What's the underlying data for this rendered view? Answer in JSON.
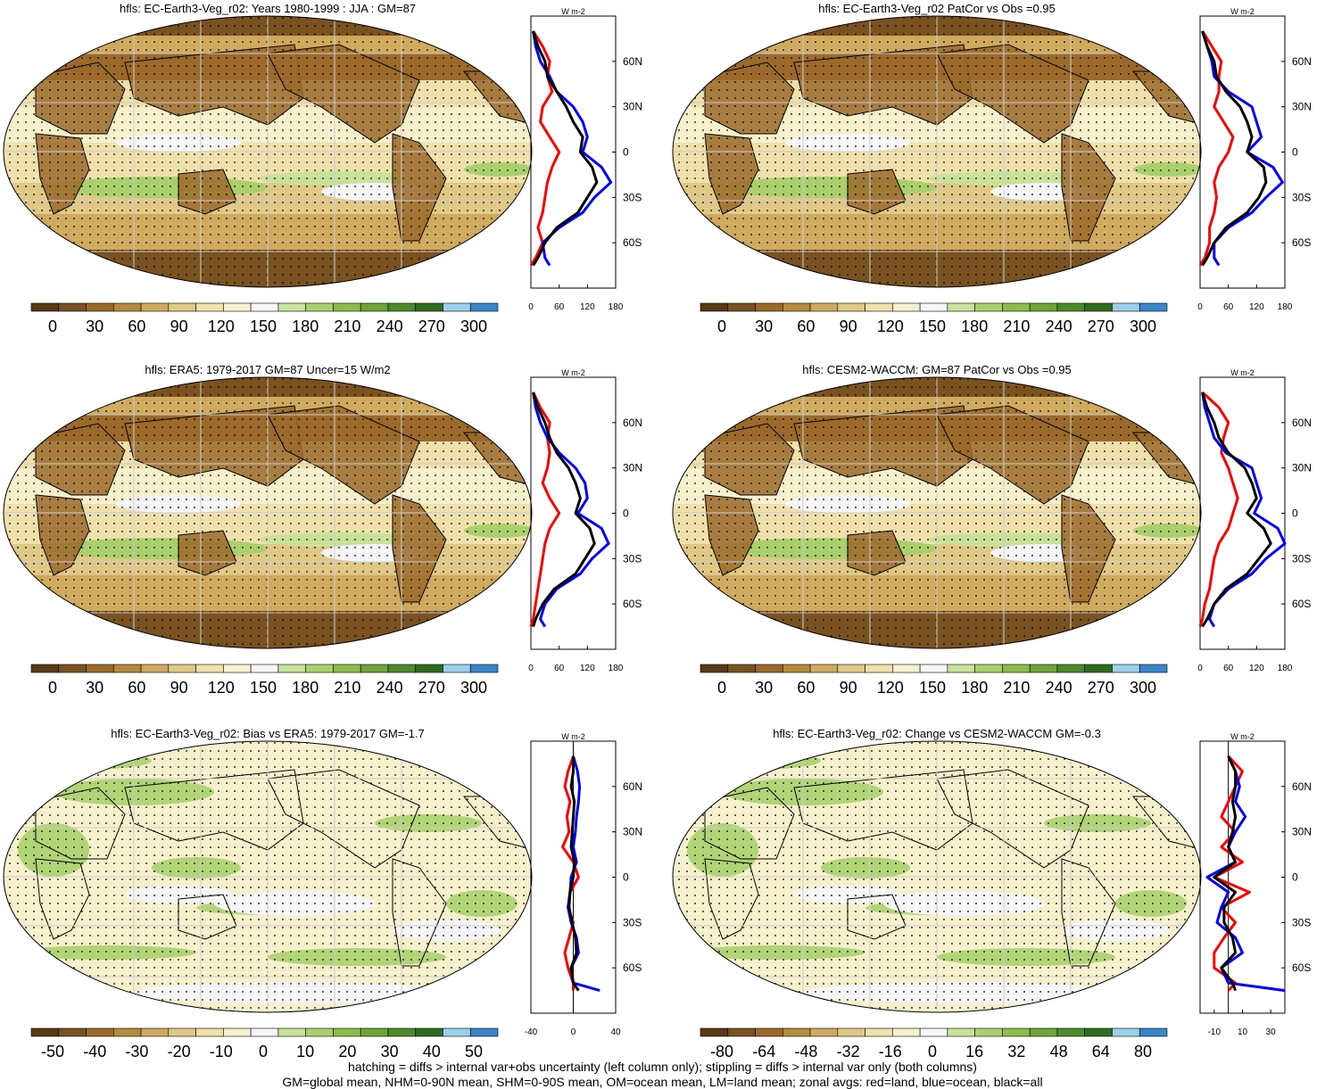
{
  "chart_data": [
    {
      "type": "map",
      "title": "hfls: EC-Earth3-Veg_r02: Years 1980-1999 : JJA : GM=87",
      "colorbar": {
        "labels": [
          "0",
          "30",
          "60",
          "90",
          "120",
          "150",
          "180",
          "210",
          "240",
          "270",
          "300"
        ],
        "kind": "abs"
      },
      "zonal": {
        "type": "line",
        "unit": "W m-2",
        "xticks": [
          "0",
          "60",
          "120",
          "180"
        ],
        "xlim": [
          0,
          180
        ],
        "yticks": [
          "60N",
          "30N",
          "0",
          "30S",
          "60S"
        ],
        "ylim": [
          -90,
          90
        ],
        "series": [
          {
            "color": "#ff0000",
            "lat": [
              80,
              70,
              60,
              50,
              40,
              30,
              20,
              10,
              0,
              -10,
              -20,
              -30,
              -40,
              -50,
              -60,
              -70,
              -75
            ],
            "values": [
              5,
              25,
              40,
              35,
              45,
              25,
              20,
              40,
              60,
              45,
              35,
              30,
              25,
              15,
              25,
              10,
              0
            ]
          },
          {
            "color": "#0000ff",
            "lat": [
              80,
              70,
              60,
              50,
              40,
              30,
              20,
              10,
              0,
              -10,
              -20,
              -30,
              -40,
              -50,
              -60,
              -70,
              -75
            ],
            "values": [
              5,
              10,
              20,
              40,
              55,
              90,
              110,
              120,
              110,
              150,
              170,
              135,
              110,
              60,
              25,
              30,
              40
            ]
          },
          {
            "color": "#000000",
            "lat": [
              80,
              70,
              60,
              50,
              40,
              30,
              20,
              10,
              0,
              -10,
              -20,
              -30,
              -40,
              -50,
              -60,
              -70,
              -75
            ],
            "values": [
              5,
              15,
              30,
              35,
              55,
              75,
              90,
              110,
              105,
              130,
              140,
              120,
              100,
              55,
              30,
              15,
              5
            ]
          }
        ]
      }
    },
    {
      "type": "map",
      "title": "hfls: EC-Earth3-Veg_r02 PatCor vs Obs =0.95",
      "colorbar": {
        "labels": [
          "0",
          "30",
          "60",
          "90",
          "120",
          "150",
          "180",
          "210",
          "240",
          "270",
          "300"
        ],
        "kind": "abs"
      },
      "zonal": {
        "type": "line",
        "unit": "W m-2",
        "xticks": [
          "0",
          "60",
          "120",
          "180"
        ],
        "xlim": [
          0,
          180
        ],
        "yticks": [
          "60N",
          "30N",
          "0",
          "30S",
          "60S"
        ],
        "ylim": [
          -90,
          90
        ],
        "series": [
          {
            "color": "#ff0000",
            "lat": [
              80,
              70,
              60,
              50,
              40,
              30,
              20,
              10,
              0,
              -10,
              -20,
              -30,
              -40,
              -50,
              -60,
              -70,
              -75
            ],
            "values": [
              5,
              25,
              45,
              40,
              40,
              30,
              50,
              70,
              60,
              40,
              30,
              35,
              30,
              20,
              20,
              10,
              0
            ]
          },
          {
            "color": "#0000ff",
            "lat": [
              80,
              70,
              60,
              50,
              40,
              30,
              20,
              10,
              0,
              -10,
              -20,
              -30,
              -40,
              -50,
              -60,
              -70,
              -75
            ],
            "values": [
              5,
              15,
              25,
              30,
              60,
              110,
              120,
              130,
              100,
              155,
              175,
              140,
              110,
              60,
              30,
              30,
              40
            ]
          },
          {
            "color": "#000000",
            "lat": [
              80,
              70,
              60,
              50,
              40,
              30,
              20,
              10,
              0,
              -10,
              -20,
              -30,
              -40,
              -50,
              -60,
              -70,
              -75
            ],
            "values": [
              5,
              15,
              30,
              35,
              55,
              85,
              100,
              110,
              100,
              135,
              140,
              125,
              100,
              55,
              30,
              15,
              5
            ]
          }
        ]
      }
    },
    {
      "type": "map",
      "title": "hfls: ERA5: 1979-2017 GM=87 Uncer=15 W/m2",
      "colorbar": {
        "labels": [
          "0",
          "30",
          "60",
          "90",
          "120",
          "150",
          "180",
          "210",
          "240",
          "270",
          "300"
        ],
        "kind": "abs"
      },
      "zonal": {
        "type": "line",
        "unit": "W m-2",
        "xticks": [
          "0",
          "60",
          "120",
          "180"
        ],
        "xlim": [
          0,
          180
        ],
        "yticks": [
          "60N",
          "30N",
          "0",
          "30S",
          "60S"
        ],
        "ylim": [
          -90,
          90
        ],
        "series": [
          {
            "color": "#ff0000",
            "lat": [
              80,
              70,
              60,
              50,
              40,
              30,
              20,
              10,
              0,
              -10,
              -20,
              -30,
              -40,
              -50,
              -60,
              -70,
              -75
            ],
            "values": [
              5,
              20,
              40,
              35,
              40,
              35,
              25,
              40,
              60,
              40,
              30,
              25,
              20,
              15,
              10,
              5,
              0
            ]
          },
          {
            "color": "#0000ff",
            "lat": [
              80,
              70,
              60,
              50,
              40,
              30,
              20,
              10,
              0,
              -10,
              -20,
              -30,
              -40,
              -50,
              -60,
              -70,
              -75
            ],
            "values": [
              5,
              10,
              20,
              35,
              60,
              95,
              115,
              120,
              100,
              150,
              165,
              130,
              105,
              55,
              30,
              20,
              30
            ]
          },
          {
            "color": "#000000",
            "lat": [
              80,
              70,
              60,
              50,
              40,
              30,
              20,
              10,
              0,
              -10,
              -20,
              -30,
              -40,
              -50,
              -60,
              -70,
              -75
            ],
            "values": [
              5,
              15,
              30,
              40,
              55,
              80,
              95,
              105,
              95,
              125,
              135,
              115,
              95,
              50,
              25,
              10,
              5
            ]
          }
        ]
      }
    },
    {
      "type": "map",
      "title": "hfls: CESM2-WACCM: GM=87 PatCor vs Obs =0.95",
      "colorbar": {
        "labels": [
          "0",
          "30",
          "60",
          "90",
          "120",
          "150",
          "180",
          "210",
          "240",
          "270",
          "300"
        ],
        "kind": "abs"
      },
      "zonal": {
        "type": "line",
        "unit": "W m-2",
        "xticks": [
          "0",
          "60",
          "120",
          "180"
        ],
        "xlim": [
          0,
          180
        ],
        "yticks": [
          "60N",
          "30N",
          "0",
          "30S",
          "60S"
        ],
        "ylim": [
          -90,
          90
        ],
        "series": [
          {
            "color": "#ff0000",
            "lat": [
              80,
              70,
              60,
              50,
              40,
              30,
              20,
              10,
              0,
              -10,
              -20,
              -30,
              -40,
              -50,
              -60,
              -70,
              -75
            ],
            "values": [
              5,
              40,
              60,
              50,
              45,
              60,
              70,
              80,
              70,
              60,
              40,
              30,
              25,
              20,
              10,
              5,
              0
            ]
          },
          {
            "color": "#0000ff",
            "lat": [
              80,
              70,
              60,
              50,
              40,
              30,
              20,
              10,
              0,
              -10,
              -20,
              -30,
              -40,
              -50,
              -60,
              -70,
              -75
            ],
            "values": [
              5,
              10,
              20,
              30,
              55,
              110,
              120,
              130,
              115,
              165,
              180,
              140,
              110,
              60,
              30,
              20,
              30
            ]
          },
          {
            "color": "#000000",
            "lat": [
              80,
              70,
              60,
              50,
              40,
              30,
              20,
              10,
              0,
              -10,
              -20,
              -30,
              -40,
              -50,
              -60,
              -70,
              -75
            ],
            "values": [
              5,
              15,
              30,
              40,
              60,
              95,
              110,
              120,
              100,
              135,
              150,
              125,
              100,
              55,
              30,
              15,
              5
            ]
          }
        ]
      }
    },
    {
      "type": "map",
      "title": "hfls: EC-Earth3-Veg_r02: Bias vs ERA5: 1979-2017 GM=-1.7",
      "colorbar": {
        "labels": [
          "-50",
          "-40",
          "-30",
          "-20",
          "-10",
          "0",
          "10",
          "20",
          "30",
          "40",
          "50"
        ],
        "kind": "diff"
      },
      "zonal": {
        "type": "line",
        "unit": "W m-2",
        "xticks": [
          "-40",
          "0",
          "40"
        ],
        "xlim": [
          -40,
          40
        ],
        "yticks": [
          "60N",
          "30N",
          "0",
          "30S",
          "60S"
        ],
        "ylim": [
          -90,
          90
        ],
        "series": [
          {
            "color": "#ff0000",
            "lat": [
              80,
              70,
              60,
              50,
              40,
              30,
              20,
              10,
              0,
              -10,
              -20,
              -30,
              -40,
              -50,
              -60,
              -70,
              -75
            ],
            "values": [
              0,
              -5,
              -8,
              -3,
              -6,
              -4,
              -10,
              0,
              5,
              -3,
              -5,
              0,
              -4,
              -8,
              -5,
              0,
              0
            ]
          },
          {
            "color": "#0000ff",
            "lat": [
              80,
              70,
              60,
              50,
              40,
              30,
              20,
              10,
              0,
              -10,
              -20,
              -30,
              -40,
              -50,
              -60,
              -70,
              -75
            ],
            "values": [
              0,
              4,
              6,
              5,
              3,
              2,
              0,
              3,
              -2,
              -3,
              -5,
              -2,
              3,
              5,
              -2,
              0,
              25
            ]
          },
          {
            "color": "#000000",
            "lat": [
              80,
              70,
              60,
              50,
              40,
              30,
              20,
              10,
              0,
              -10,
              -20,
              -30,
              -40,
              -50,
              -60,
              -70,
              -75
            ],
            "values": [
              0,
              0,
              -2,
              1,
              0,
              -1,
              -2,
              1,
              0,
              -3,
              -4,
              -1,
              2,
              3,
              -2,
              0,
              5
            ]
          }
        ]
      }
    },
    {
      "type": "map",
      "title": "hfls: EC-Earth3-Veg_r02: Change vs CESM2-WACCM GM=-0.3",
      "colorbar": {
        "labels": [
          "-80",
          "-64",
          "-48",
          "-32",
          "-16",
          "0",
          "16",
          "32",
          "48",
          "64",
          "80"
        ],
        "kind": "diff"
      },
      "zonal": {
        "type": "line",
        "unit": "W m-2",
        "xticks": [
          "-10",
          "10",
          "30"
        ],
        "xlim": [
          -20,
          40
        ],
        "yticks": [
          "60N",
          "30N",
          "0",
          "30S",
          "60S"
        ],
        "ylim": [
          -90,
          90
        ],
        "series": [
          {
            "color": "#ff0000",
            "lat": [
              80,
              70,
              60,
              50,
              40,
              30,
              20,
              10,
              0,
              -10,
              -20,
              -30,
              -40,
              -50,
              -60,
              -70,
              -75
            ],
            "values": [
              0,
              10,
              5,
              0,
              -5,
              5,
              -5,
              10,
              -10,
              15,
              -5,
              5,
              -3,
              -10,
              -10,
              5,
              0
            ]
          },
          {
            "color": "#0000ff",
            "lat": [
              80,
              70,
              60,
              50,
              40,
              30,
              20,
              10,
              0,
              -10,
              -20,
              -30,
              -40,
              -50,
              -60,
              -70,
              -75
            ],
            "values": [
              0,
              5,
              8,
              5,
              12,
              5,
              0,
              5,
              -15,
              0,
              -5,
              -8,
              5,
              10,
              -5,
              0,
              40
            ]
          },
          {
            "color": "#000000",
            "lat": [
              80,
              70,
              60,
              50,
              40,
              30,
              20,
              10,
              0,
              -10,
              -20,
              -30,
              -40,
              -50,
              -60,
              -70,
              -75
            ],
            "values": [
              0,
              5,
              5,
              3,
              5,
              3,
              0,
              5,
              -10,
              5,
              -3,
              -3,
              3,
              5,
              -5,
              3,
              5
            ]
          }
        ]
      }
    }
  ],
  "footer": {
    "line1": "hatching = diffs > internal var+obs uncertainty (left column only); stippling = diffs > internal var only (both columns)",
    "line2": "GM=global mean, NHM=0-90N mean, SHM=0-90S mean, OM=ocean mean, LM=land mean; zonal avgs: red=land, blue=ocean, black=all"
  },
  "colors": {
    "abs_palette": [
      "#5a3a16",
      "#7a5220",
      "#9b6a2a",
      "#b78b3e",
      "#cfaa5e",
      "#e0c886",
      "#f0e0ac",
      "#f7f0cc",
      "#f6f6f8",
      "#c9e29a",
      "#a9d06d",
      "#8cbd4a",
      "#6fa438",
      "#4d8a2a",
      "#2f6c1e",
      "#9ad0ea",
      "#3b86c8"
    ],
    "diff_palette": [
      "#5a3a16",
      "#7a5220",
      "#9b6a2a",
      "#b78b3e",
      "#cfaa5e",
      "#e0c886",
      "#f0e0ac",
      "#f7f0cc",
      "#f6f6f8",
      "#c9e29a",
      "#a9d06d",
      "#8cbd4a",
      "#6fa438",
      "#4d8a2a",
      "#2f6c1e",
      "#9ad0ea",
      "#3b86c8"
    ]
  }
}
